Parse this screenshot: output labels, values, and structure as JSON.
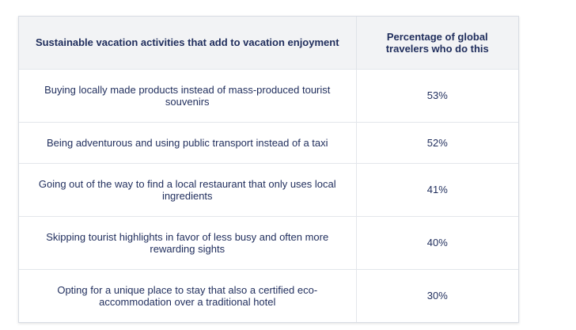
{
  "chart_data": {
    "type": "table",
    "columns": [
      "Sustainable vacation activities that add to vacation enjoyment",
      "Percentage of global travelers who do this"
    ],
    "rows": [
      {
        "activity": "Buying locally made products instead of mass-produced tourist souvenirs",
        "percentage": "53%"
      },
      {
        "activity": "Being adventurous and using public transport instead of a taxi",
        "percentage": "52%"
      },
      {
        "activity": "Going out of the way to find a local restaurant that only uses local ingredients",
        "percentage": "41%"
      },
      {
        "activity": "Skipping tourist highlights in favor of less busy and often more rewarding sights",
        "percentage": "40%"
      },
      {
        "activity": "Opting for a unique place to stay that also a certified eco-accommodation over a traditional hotel",
        "percentage": "30%"
      }
    ]
  }
}
